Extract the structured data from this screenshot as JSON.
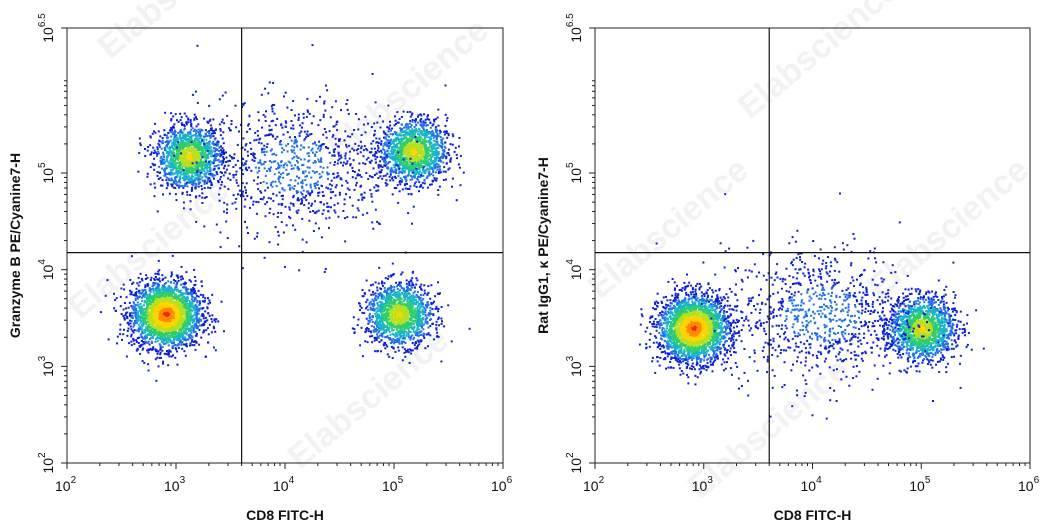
{
  "watermark": "Elabscience",
  "chart_data": [
    {
      "type": "scatter",
      "subtype": "flow-cytometry-density-dot-plot",
      "xlabel": "CD8 FITC-H",
      "ylabel": "Granzyme B PE/Cyanine7-H",
      "xscale": "log",
      "yscale": "log",
      "xlim": [
        100,
        1000000
      ],
      "ylim": [
        100,
        3162278
      ],
      "x_ticks": [
        {
          "base": "10",
          "exp": "2"
        },
        {
          "base": "10",
          "exp": "3"
        },
        {
          "base": "10",
          "exp": "4"
        },
        {
          "base": "10",
          "exp": "5"
        },
        {
          "base": "10",
          "exp": "6"
        }
      ],
      "y_ticks": [
        {
          "base": "10",
          "exp": "2"
        },
        {
          "base": "10",
          "exp": "3"
        },
        {
          "base": "10",
          "exp": "4"
        },
        {
          "base": "10",
          "exp": "5"
        },
        {
          "base": "10",
          "exp": "6.5"
        }
      ],
      "gate_x": 4000,
      "gate_y": 15000,
      "populations": [
        {
          "x": 800,
          "y": 3500,
          "density": "high"
        },
        {
          "x": 110000,
          "y": 3500,
          "density": "medium"
        },
        {
          "x": 1300,
          "y": 150000,
          "density": "medium"
        },
        {
          "x": 150000,
          "y": 170000,
          "density": "medium"
        },
        {
          "x": 12000,
          "y": 120000,
          "density": "low"
        }
      ]
    },
    {
      "type": "scatter",
      "subtype": "flow-cytometry-density-dot-plot",
      "xlabel": "CD8 FITC-H",
      "ylabel": "Rat IgG1, κ PE/Cyanine7-H",
      "xscale": "log",
      "yscale": "log",
      "xlim": [
        100,
        1000000
      ],
      "ylim": [
        100,
        3162278
      ],
      "x_ticks": [
        {
          "base": "10",
          "exp": "2"
        },
        {
          "base": "10",
          "exp": "3"
        },
        {
          "base": "10",
          "exp": "4"
        },
        {
          "base": "10",
          "exp": "5"
        },
        {
          "base": "10",
          "exp": "6"
        }
      ],
      "y_ticks": [
        {
          "base": "10",
          "exp": "2"
        },
        {
          "base": "10",
          "exp": "3"
        },
        {
          "base": "10",
          "exp": "4"
        },
        {
          "base": "10",
          "exp": "5"
        },
        {
          "base": "10",
          "exp": "6.5"
        }
      ],
      "gate_x": 4000,
      "gate_y": 15000,
      "populations": [
        {
          "x": 800,
          "y": 2500,
          "density": "high"
        },
        {
          "x": 100000,
          "y": 2500,
          "density": "medium"
        },
        {
          "x": 12000,
          "y": 3500,
          "density": "low"
        }
      ]
    }
  ]
}
